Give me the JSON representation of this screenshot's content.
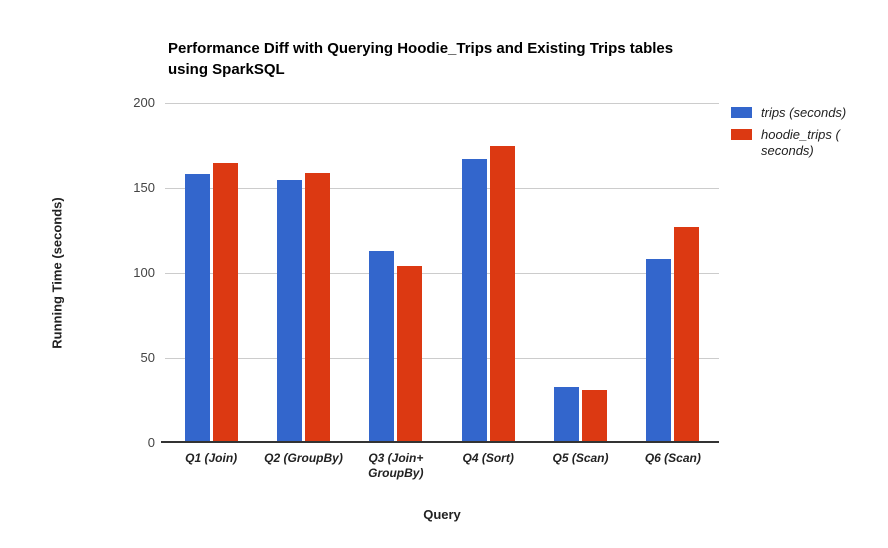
{
  "title_lines": [
    "Performance Diff with Querying Hoodie_Trips and Existing Trips tables",
    "using SparkSQL"
  ],
  "chart_data": {
    "type": "bar",
    "title": "Performance Diff with Querying Hoodie_Trips and Existing Trips tables using SparkSQL",
    "xlabel": "Query",
    "ylabel": "Running Time (seconds)",
    "ylim": [
      0,
      200
    ],
    "yticks": [
      0,
      50,
      100,
      150,
      200
    ],
    "grid": true,
    "legend_position": "right",
    "categories": [
      "Q1 (Join)",
      "Q2 (GroupBy)",
      "Q3 (Join+ GroupBy)",
      "Q4 (Sort)",
      "Q5 (Scan)",
      "Q6 (Scan)"
    ],
    "categories_lines": [
      [
        "Q1 (Join)"
      ],
      [
        "Q2 (GroupBy)"
      ],
      [
        "Q3 (Join+",
        "GroupBy)"
      ],
      [
        "Q4 (Sort)"
      ],
      [
        "Q5 (Scan)"
      ],
      [
        "Q6 (Scan)"
      ]
    ],
    "series": [
      {
        "key": "trips",
        "name": "trips (seconds)",
        "color": "#3366CC",
        "values": [
          158,
          155,
          113,
          167,
          33,
          108
        ]
      },
      {
        "key": "hoodie_trips",
        "name": "hoodie_trips (seconds)",
        "color": "#DC3912",
        "values": [
          165,
          159,
          104,
          175,
          31,
          127
        ]
      }
    ]
  },
  "legend": {
    "items": [
      {
        "label": "trips (seconds)",
        "lines": [
          "trips (seconds)"
        ],
        "color": "#3366CC"
      },
      {
        "label": "hoodie_trips (seconds)",
        "lines": [
          "hoodie_trips (",
          "seconds)"
        ],
        "color": "#DC3912"
      }
    ]
  },
  "colors": {
    "grid": "#cccccc",
    "baseline": "#333333",
    "tick_text": "#444444",
    "label_text": "#222222",
    "title_text": "#000000",
    "background": "#ffffff"
  }
}
